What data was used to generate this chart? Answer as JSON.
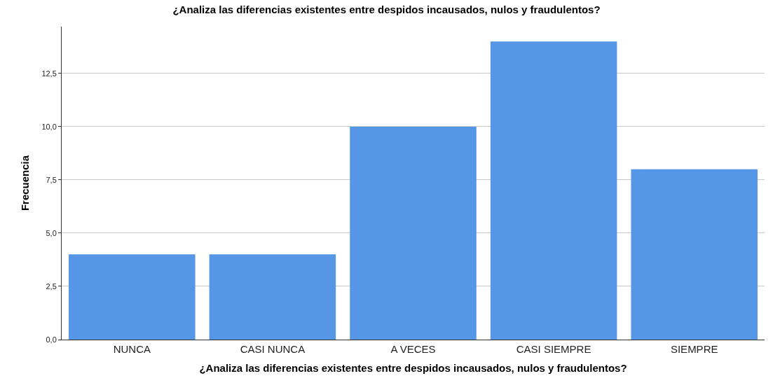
{
  "chart_data": {
    "type": "bar",
    "title": "¿Analiza las diferencias existentes entre despidos incausados, nulos y fraudulentos?",
    "xlabel": "¿Analiza las diferencias existentes entre despidos incausados, nulos y fraudulentos?",
    "ylabel": "Frecuencia",
    "categories": [
      "NUNCA",
      "CASI NUNCA",
      "A VECES",
      "CASI SIEMPRE",
      "SIEMPRE"
    ],
    "values": [
      4,
      4,
      10,
      14,
      8
    ],
    "color": "#5596e6",
    "ylim": [
      0,
      14.7
    ],
    "yticks": [
      {
        "value": 0,
        "label": "0,0"
      },
      {
        "value": 2.5,
        "label": "2,5"
      },
      {
        "value": 5,
        "label": "5,0"
      },
      {
        "value": 7.5,
        "label": "7,5"
      },
      {
        "value": 10,
        "label": "10,0"
      },
      {
        "value": 12.5,
        "label": "12,5"
      }
    ],
    "grid": "y"
  }
}
